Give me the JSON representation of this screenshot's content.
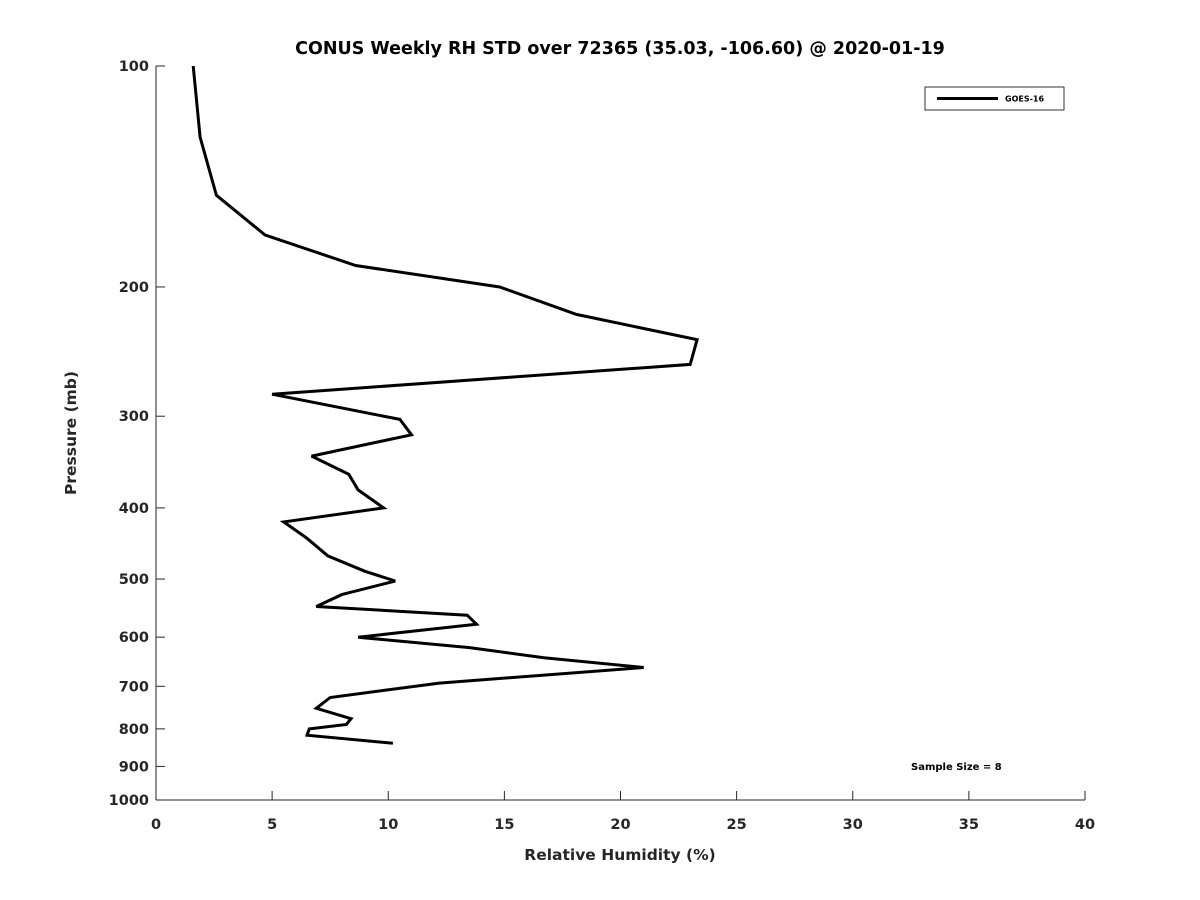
{
  "chart_data": {
    "type": "line",
    "title": "CONUS Weekly RH STD over 72365 (35.03, -106.60) @ 2020-01-19",
    "xlabel": "Relative Humidity (%)",
    "ylabel": "Pressure (mb)",
    "xlim": [
      0,
      40
    ],
    "ylim": [
      100,
      1000
    ],
    "y_scale": "log",
    "y_reversed": true,
    "x_ticks": [
      "0",
      "5",
      "10",
      "15",
      "20",
      "25",
      "30",
      "35",
      "40"
    ],
    "x_tick_values": [
      0,
      5,
      10,
      15,
      20,
      25,
      30,
      35,
      40
    ],
    "y_ticks": [
      "100",
      "200",
      "300",
      "400",
      "500",
      "600",
      "700",
      "800",
      "900",
      "1000"
    ],
    "y_tick_values": [
      100,
      200,
      300,
      400,
      500,
      600,
      700,
      800,
      900,
      1000
    ],
    "grid": false,
    "legend_position": "top-right",
    "series": [
      {
        "name": "GOES-16",
        "color": "#000000",
        "x": [
          1.6,
          1.9,
          2.6,
          4.7,
          8.6,
          14.8,
          18.1,
          23.3,
          23.0,
          5.0,
          10.5,
          11.0,
          6.7,
          8.3,
          8.7,
          9.8,
          5.5,
          6.5,
          7.4,
          9.0,
          10.3,
          8.0,
          6.9,
          13.4,
          13.8,
          8.7,
          13.5,
          16.7,
          21.0,
          12.2,
          7.5,
          6.9,
          8.4,
          8.2,
          6.6,
          6.5,
          10.2
        ],
        "y": [
          100,
          125,
          150,
          170,
          187,
          200,
          218,
          236,
          255,
          280,
          303,
          318,
          340,
          360,
          378,
          400,
          418,
          440,
          465,
          488,
          503,
          525,
          545,
          560,
          576,
          600,
          620,
          640,
          660,
          693,
          725,
          750,
          775,
          789,
          800,
          816,
          837
        ]
      }
    ],
    "annotation": "Sample Size = 8",
    "colors": {
      "line": "#000000",
      "axes": "#262626",
      "background": "#ffffff"
    }
  }
}
